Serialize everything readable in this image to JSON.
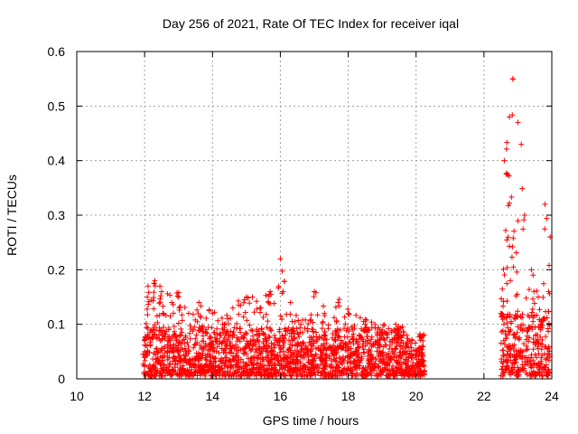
{
  "chart_data": {
    "type": "scatter",
    "title": "Day 256 of 2021, Rate Of TEC Index for receiver iqal",
    "xlabel": "GPS time / hours",
    "ylabel": "ROTI / TECUs",
    "xlim": [
      10,
      24
    ],
    "ylim": [
      0,
      0.6
    ],
    "xticks": [
      10,
      12,
      14,
      16,
      18,
      20,
      22,
      24
    ],
    "yticks": [
      0,
      0.1,
      0.2,
      0.3,
      0.4,
      0.5,
      0.6
    ],
    "xtick_labels": [
      "10",
      "12",
      "14",
      "16",
      "18",
      "20",
      "22",
      "24"
    ],
    "ytick_labels": [
      "0",
      "0.1",
      "0.2",
      "0.3",
      "0.4",
      "0.5",
      "0.6"
    ],
    "grid": true,
    "marker": "+",
    "series_color": "#ff0000",
    "series": [
      {
        "name": "ROTI",
        "segments": [
          {
            "x_range": [
              11.95,
              20.25
            ],
            "typical_max": 0.09,
            "peak_envelope": [
              [
                12.0,
                0.07
              ],
              [
                12.1,
                0.17
              ],
              [
                12.3,
                0.18
              ],
              [
                12.5,
                0.16
              ],
              [
                12.8,
                0.14
              ],
              [
                13.0,
                0.15
              ],
              [
                13.3,
                0.12
              ],
              [
                13.6,
                0.14
              ],
              [
                14.0,
                0.12
              ],
              [
                14.3,
                0.1
              ],
              [
                14.6,
                0.13
              ],
              [
                15.0,
                0.15
              ],
              [
                15.4,
                0.13
              ],
              [
                15.7,
                0.16
              ],
              [
                16.0,
                0.22
              ],
              [
                16.3,
                0.14
              ],
              [
                16.6,
                0.1
              ],
              [
                17.0,
                0.16
              ],
              [
                17.3,
                0.12
              ],
              [
                17.7,
                0.14
              ],
              [
                18.0,
                0.12
              ],
              [
                18.5,
                0.1
              ],
              [
                19.0,
                0.09
              ],
              [
                19.4,
                0.1
              ],
              [
                19.8,
                0.07
              ],
              [
                20.2,
                0.08
              ]
            ]
          },
          {
            "x_range": [
              22.5,
              23.95
            ],
            "typical_max": 0.12,
            "peak_envelope": [
              [
                22.5,
                0.12
              ],
              [
                22.6,
                0.4
              ],
              [
                22.75,
                0.48
              ],
              [
                22.85,
                0.55
              ],
              [
                23.0,
                0.47
              ],
              [
                23.1,
                0.43
              ],
              [
                23.2,
                0.3
              ],
              [
                23.4,
                0.2
              ],
              [
                23.6,
                0.15
              ],
              [
                23.8,
                0.32
              ],
              [
                23.95,
                0.26
              ]
            ]
          }
        ]
      }
    ]
  }
}
